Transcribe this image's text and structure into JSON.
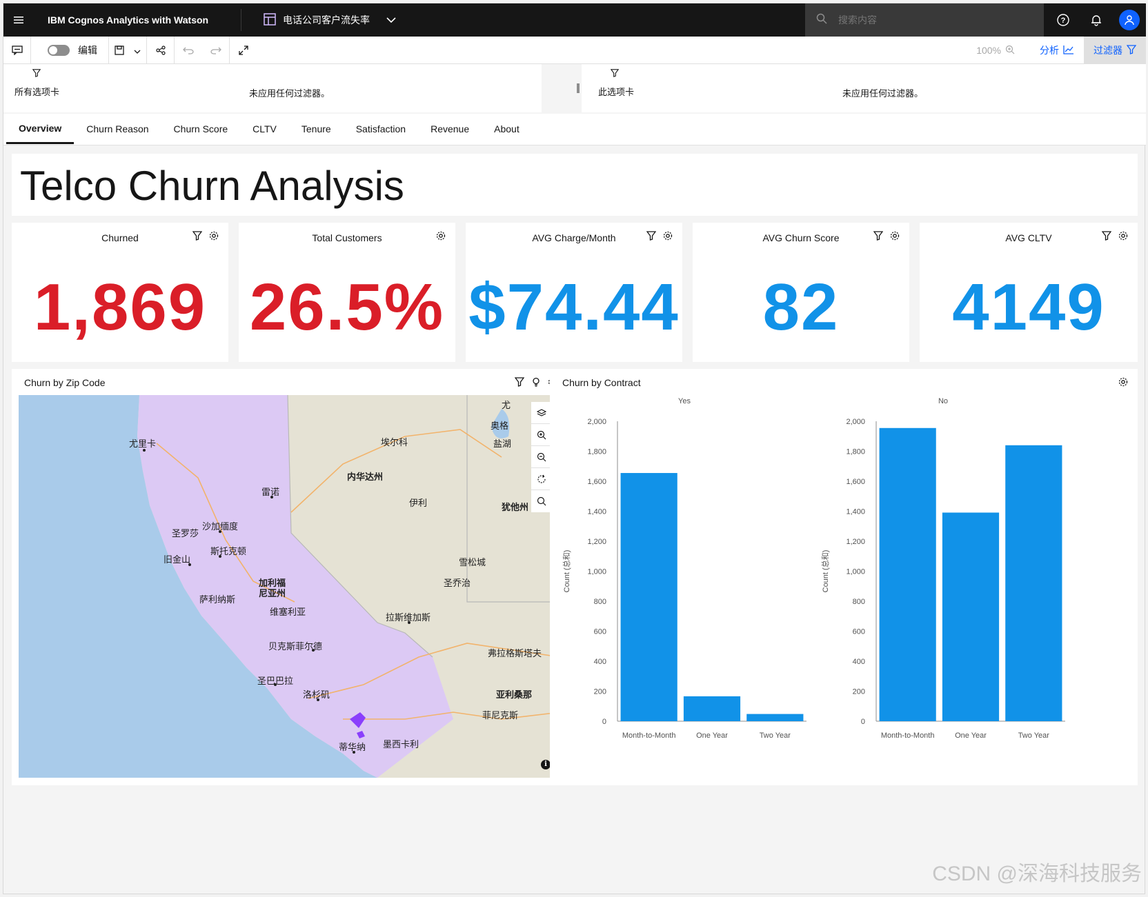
{
  "topbar": {
    "app_title": "IBM Cognos Analytics with Watson",
    "report_name": "电话公司客户流失率",
    "search_placeholder": "搜索内容"
  },
  "toolbar": {
    "edit_label": "编辑",
    "zoom": "100%",
    "analyze_label": "分析",
    "filters_label": "过滤器"
  },
  "filters": {
    "all_tabs_label": "所有选项卡",
    "all_tabs_empty": "未应用任何过滤器。",
    "this_tab_label": "此选项卡",
    "this_tab_empty": "未应用任何过滤器。"
  },
  "tabs": [
    "Overview",
    "Churn Reason",
    "Churn Score",
    "CLTV",
    "Tenure",
    "Satisfaction",
    "Revenue",
    "About"
  ],
  "dashboard": {
    "title": "Telco Churn Analysis",
    "kpis": [
      {
        "label": "Churned",
        "value": "1,869",
        "color": "#da1e28"
      },
      {
        "label": "Total Customers",
        "value": "26.5%",
        "color": "#da1e28"
      },
      {
        "label": "AVG Charge/Month",
        "value": "$74.44",
        "color": "#1192e8"
      },
      {
        "label": "AVG Churn Score",
        "value": "82",
        "color": "#1192e8"
      },
      {
        "label": "AVG CLTV",
        "value": "4149",
        "color": "#1192e8"
      }
    ],
    "map_widget": {
      "title": "Churn by Zip Code",
      "labels": [
        "尤里卡",
        "埃尔科",
        "内华达州",
        "雷诺",
        "伊利",
        "沙加缅度",
        "圣罗莎",
        "斯托克顿",
        "旧金山",
        "雪松城",
        "加利福尼亚州",
        "圣乔治",
        "萨利纳斯",
        "维塞利亚",
        "拉斯维加斯",
        "贝克斯菲尔德",
        "弗拉格斯塔夫",
        "圣巴巴拉",
        "洛杉矶",
        "亚利桑那",
        "菲尼克斯",
        "蒂华纳",
        "墨西卡利",
        "奥格",
        "盐湖",
        "犹他州",
        "尤"
      ]
    },
    "contract_widget": {
      "title": "Churn by Contract"
    }
  },
  "chart_data": [
    {
      "type": "bar",
      "title": "Yes",
      "categories": [
        "Month-to-Month",
        "One Year",
        "Two Year"
      ],
      "values": [
        1655,
        166,
        48
      ],
      "ylabel": "Count (总和)",
      "ylim": [
        0,
        2000
      ],
      "yticks": [
        "0",
        "200",
        "400",
        "600",
        "800",
        "1,000",
        "1,200",
        "1,400",
        "1,600",
        "1,800",
        "2,000"
      ],
      "color": "#1192e8"
    },
    {
      "type": "bar",
      "title": "No",
      "categories": [
        "Month-to-Month",
        "One Year",
        "Two Year"
      ],
      "values": [
        1955,
        1391,
        1840
      ],
      "ylabel": "Count (总和)",
      "ylim": [
        0,
        2000
      ],
      "yticks": [
        "0",
        "200",
        "400",
        "600",
        "800",
        "1,000",
        "1,200",
        "1,400",
        "1,600",
        "1,800",
        "2,000"
      ],
      "color": "#1192e8"
    }
  ],
  "watermark": "CSDN @深海科技服务"
}
